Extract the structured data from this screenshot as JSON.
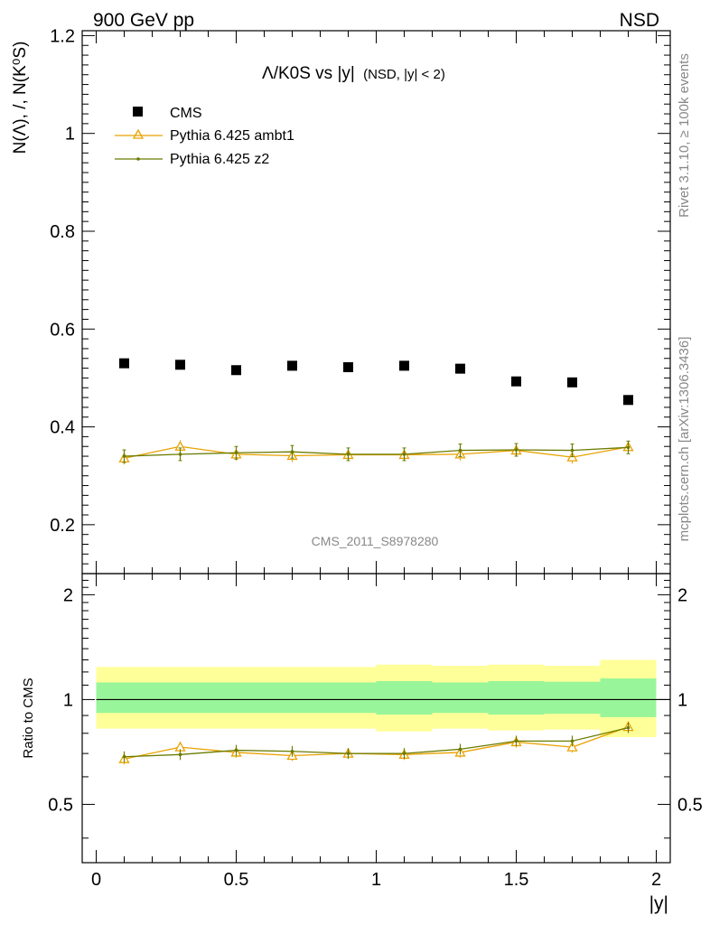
{
  "header": {
    "left": "900 GeV pp",
    "right": "NSD"
  },
  "side_text": {
    "rivet": "Rivet 3.1.10, ≥ 100k events",
    "mcplots": "mcplots.cern.ch [arXiv:1306.3436]"
  },
  "watermark": "CMS_2011_S8978280",
  "chart_data": [
    {
      "type": "scatter",
      "title_main": "Λ/K0S vs |y|",
      "title_sub": "(NSD, |y| < 2)",
      "ylabel": "N(Λ), /, N(K⁰S)",
      "xlim": [
        -0.05,
        2.05
      ],
      "ylim": [
        0.1,
        1.21
      ],
      "yticks": [
        0.2,
        0.4,
        0.6,
        0.8,
        1,
        1.2
      ],
      "ytick_labels": [
        "0.2",
        "0.4",
        "0.6",
        "0.8",
        "1",
        "1.2"
      ],
      "x": [
        0.1,
        0.3,
        0.5,
        0.7,
        0.9,
        1.1,
        1.3,
        1.5,
        1.7,
        1.9
      ],
      "series": [
        {
          "name": "CMS",
          "color": "#000000",
          "marker": "square",
          "values": [
            0.53,
            0.527,
            0.516,
            0.525,
            0.522,
            0.525,
            0.519,
            0.493,
            0.491,
            0.455
          ]
        },
        {
          "name": "Pythia 6.425 ambt1",
          "color": "#e8a200",
          "marker": "triangle",
          "values": [
            0.336,
            0.36,
            0.344,
            0.341,
            0.343,
            0.343,
            0.344,
            0.352,
            0.338,
            0.359
          ]
        },
        {
          "name": "Pythia 6.425 z2",
          "color": "#6b7b00",
          "marker": "dot",
          "values": [
            0.34,
            0.344,
            0.347,
            0.349,
            0.344,
            0.344,
            0.352,
            0.353,
            0.352,
            0.358
          ]
        }
      ]
    },
    {
      "type": "line",
      "ylabel": "Ratio to CMS",
      "xlabel": "|y|",
      "xlim": [
        -0.05,
        2.05
      ],
      "ylim": [
        0.34,
        2.3
      ],
      "xticks": [
        0,
        0.5,
        1,
        1.5,
        2
      ],
      "xtick_labels": [
        "0",
        "0.5",
        "1",
        "1.5",
        "2"
      ],
      "yticks": [
        0.5,
        1,
        2
      ],
      "ytick_labels": [
        "0.5",
        "1",
        "2"
      ],
      "bands": {
        "edges": [
          0,
          0.2,
          0.4,
          0.6,
          0.8,
          1.0,
          1.2,
          1.4,
          1.6,
          1.8,
          2.0
        ],
        "yellow_lo": [
          0.825,
          0.825,
          0.825,
          0.825,
          0.825,
          0.81,
          0.825,
          0.815,
          0.82,
          0.78
        ],
        "yellow_hi": [
          1.24,
          1.24,
          1.24,
          1.24,
          1.24,
          1.26,
          1.25,
          1.26,
          1.25,
          1.3
        ],
        "green_lo": [
          0.915,
          0.915,
          0.915,
          0.915,
          0.915,
          0.905,
          0.915,
          0.905,
          0.91,
          0.89
        ],
        "green_hi": [
          1.12,
          1.12,
          1.12,
          1.12,
          1.12,
          1.13,
          1.12,
          1.13,
          1.125,
          1.15
        ],
        "yellow_color": "#ffff99",
        "green_color": "#99f599"
      },
      "x": [
        0.1,
        0.3,
        0.5,
        0.7,
        0.9,
        1.1,
        1.3,
        1.5,
        1.7,
        1.9
      ],
      "series": [
        {
          "name": "Pythia 6.425 ambt1",
          "color": "#e8a200",
          "marker": "triangle",
          "values": [
            0.675,
            0.73,
            0.705,
            0.69,
            0.7,
            0.695,
            0.705,
            0.755,
            0.73,
            0.835
          ]
        },
        {
          "name": "Pythia 6.425 z2",
          "color": "#6b7b00",
          "marker": "dot",
          "values": [
            0.685,
            0.695,
            0.715,
            0.71,
            0.7,
            0.7,
            0.72,
            0.76,
            0.76,
            0.83
          ]
        }
      ]
    }
  ]
}
